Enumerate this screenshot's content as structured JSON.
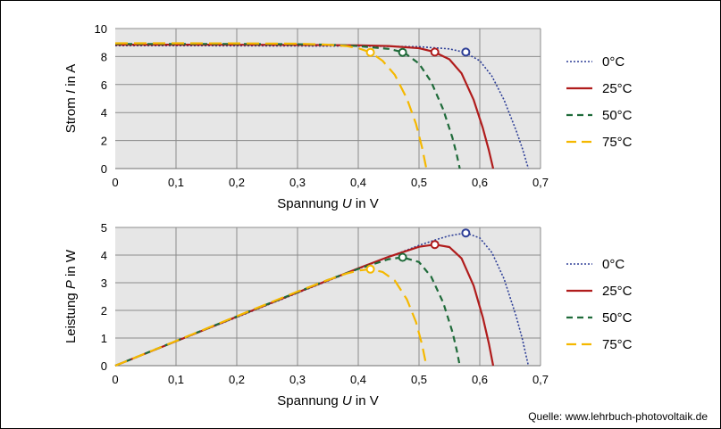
{
  "source": "Quelle: www.lehrbuch-photovoltaik.de",
  "colors": {
    "plot_bg": "#e6e6e6",
    "grid": "#8c8c8c",
    "t0": "#2e3f97",
    "t25": "#b01c1c",
    "t50": "#1f6b3a",
    "t75": "#f5b800"
  },
  "chart_data": [
    {
      "type": "line",
      "xlabel_prefix": "Spannung",
      "xlabel_symbol": "U",
      "xlabel_unit": "in V",
      "ylabel_prefix": "Strom",
      "ylabel_symbol": "I",
      "ylabel_unit": "in A",
      "xlim": [
        0,
        0.7
      ],
      "ylim": [
        0,
        10
      ],
      "xticks": [
        "0",
        "0,1",
        "0,2",
        "0,3",
        "0,4",
        "0,5",
        "0,6",
        "0,7"
      ],
      "yticks": [
        "0",
        "2",
        "4",
        "6",
        "8",
        "10"
      ],
      "grid": true,
      "legend": "right",
      "series": [
        {
          "name": "0°C",
          "style": "dotted",
          "color": "#2e3f97",
          "x": [
            0,
            0.1,
            0.2,
            0.3,
            0.4,
            0.5,
            0.55,
            0.575,
            0.6,
            0.62,
            0.64,
            0.66,
            0.67,
            0.68
          ],
          "y": [
            8.78,
            8.78,
            8.77,
            8.76,
            8.75,
            8.7,
            8.55,
            8.3,
            7.7,
            6.6,
            4.9,
            2.7,
            1.45,
            0
          ],
          "mpp": [
            0.577,
            8.32
          ]
        },
        {
          "name": "25°C",
          "style": "solid",
          "color": "#b01c1c",
          "x": [
            0,
            0.1,
            0.2,
            0.3,
            0.4,
            0.45,
            0.5,
            0.525,
            0.55,
            0.57,
            0.59,
            0.605,
            0.615,
            0.622
          ],
          "y": [
            8.85,
            8.85,
            8.84,
            8.83,
            8.8,
            8.75,
            8.6,
            8.33,
            7.8,
            6.8,
            4.9,
            2.9,
            1.3,
            0
          ],
          "mpp": [
            0.526,
            8.32
          ]
        },
        {
          "name": "50°C",
          "style": "dashed",
          "color": "#1f6b3a",
          "x": [
            0,
            0.1,
            0.2,
            0.3,
            0.35,
            0.4,
            0.45,
            0.475,
            0.5,
            0.52,
            0.54,
            0.555,
            0.562,
            0.567
          ],
          "y": [
            8.9,
            8.9,
            8.9,
            8.88,
            8.85,
            8.75,
            8.55,
            8.3,
            7.5,
            6.2,
            4.2,
            2.2,
            1.0,
            0
          ],
          "mpp": [
            0.473,
            8.3
          ]
        },
        {
          "name": "75°C",
          "style": "longdash",
          "color": "#f5b800",
          "x": [
            0,
            0.1,
            0.2,
            0.3,
            0.35,
            0.38,
            0.4,
            0.42,
            0.44,
            0.46,
            0.48,
            0.495,
            0.505,
            0.512
          ],
          "y": [
            8.95,
            8.95,
            8.94,
            8.92,
            8.85,
            8.75,
            8.6,
            8.3,
            7.7,
            6.7,
            5.0,
            3.2,
            1.5,
            0
          ],
          "mpp": [
            0.42,
            8.3
          ]
        }
      ]
    },
    {
      "type": "line",
      "xlabel_prefix": "Spannung",
      "xlabel_symbol": "U",
      "xlabel_unit": "in V",
      "ylabel_prefix": "Leistung",
      "ylabel_symbol": "P",
      "ylabel_unit": "in W",
      "xlim": [
        0,
        0.7
      ],
      "ylim": [
        0,
        5
      ],
      "xticks": [
        "0",
        "0,1",
        "0,2",
        "0,3",
        "0,4",
        "0,5",
        "0,6",
        "0,7"
      ],
      "yticks": [
        "0",
        "1",
        "2",
        "3",
        "4",
        "5"
      ],
      "grid": true,
      "legend": "right",
      "series": [
        {
          "name": "0°C",
          "style": "dotted",
          "color": "#2e3f97",
          "x": [
            0,
            0.1,
            0.2,
            0.3,
            0.4,
            0.45,
            0.5,
            0.53,
            0.55,
            0.577,
            0.6,
            0.62,
            0.64,
            0.66,
            0.67,
            0.68
          ],
          "y": [
            0,
            0.88,
            1.75,
            2.63,
            3.5,
            3.93,
            4.35,
            4.57,
            4.7,
            4.8,
            4.62,
            4.09,
            3.14,
            1.78,
            0.97,
            0
          ]
        },
        {
          "name": "25°C",
          "style": "solid",
          "color": "#b01c1c",
          "x": [
            0,
            0.1,
            0.2,
            0.3,
            0.4,
            0.45,
            0.5,
            0.526,
            0.55,
            0.57,
            0.59,
            0.605,
            0.615,
            0.622
          ],
          "y": [
            0,
            0.885,
            1.77,
            2.65,
            3.52,
            3.94,
            4.3,
            4.38,
            4.29,
            3.88,
            2.89,
            1.75,
            0.8,
            0
          ]
        },
        {
          "name": "50°C",
          "style": "dashed",
          "color": "#1f6b3a",
          "x": [
            0,
            0.1,
            0.2,
            0.3,
            0.35,
            0.4,
            0.45,
            0.473,
            0.5,
            0.52,
            0.54,
            0.555,
            0.562,
            0.567
          ],
          "y": [
            0,
            0.89,
            1.78,
            2.66,
            3.1,
            3.5,
            3.85,
            3.92,
            3.75,
            3.22,
            2.27,
            1.22,
            0.56,
            0
          ]
        },
        {
          "name": "75°C",
          "style": "longdash",
          "color": "#f5b800",
          "x": [
            0,
            0.1,
            0.2,
            0.3,
            0.35,
            0.38,
            0.4,
            0.42,
            0.44,
            0.46,
            0.48,
            0.495,
            0.505,
            0.512
          ],
          "y": [
            0,
            0.895,
            1.79,
            2.68,
            3.1,
            3.33,
            3.44,
            3.49,
            3.39,
            3.08,
            2.4,
            1.58,
            0.76,
            0
          ]
        }
      ],
      "mpp": [
        [
          0.577,
          4.8
        ],
        [
          0.526,
          4.38
        ],
        [
          0.473,
          3.92
        ],
        [
          0.42,
          3.49
        ]
      ]
    }
  ]
}
